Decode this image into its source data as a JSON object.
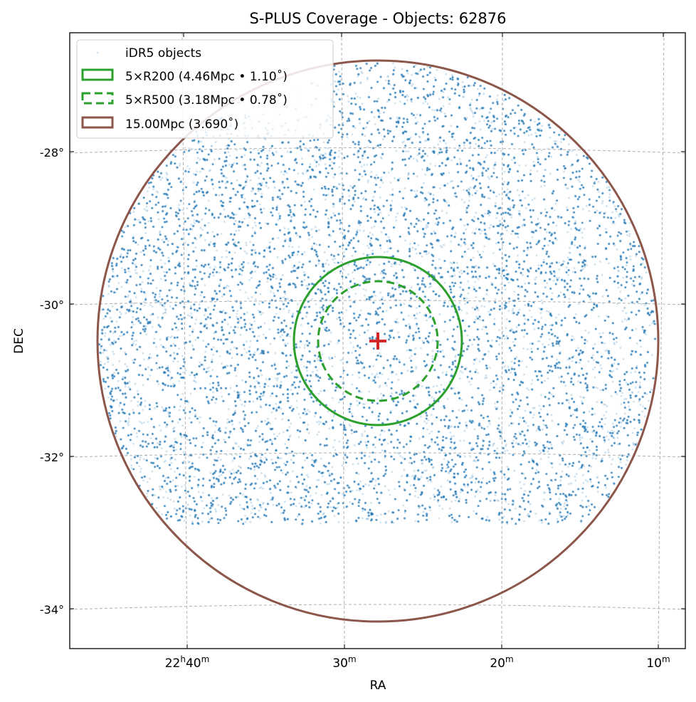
{
  "chart_data": {
    "type": "scatter",
    "title": "S-PLUS Coverage - Objects: 62876",
    "object_count": 62876,
    "xlabel": "RA",
    "ylabel": "DEC",
    "x_ticks": [
      {
        "main": "22",
        "sup1": "h",
        "main2": "40",
        "sup2": "m"
      },
      {
        "main": "",
        "sup1": "",
        "main2": "30",
        "sup2": "m"
      },
      {
        "main": "",
        "sup1": "",
        "main2": "20",
        "sup2": "m"
      },
      {
        "main": "",
        "sup1": "",
        "main2": "10",
        "sup2": "m"
      }
    ],
    "y_ticks": [
      "-28°",
      "-30°",
      "-32°",
      "-34°"
    ],
    "y_tick_values": [
      -28,
      -30,
      -32,
      -34
    ],
    "grid": true,
    "center": {
      "ra_deg": 336.95,
      "dec_deg": -30.49
    },
    "legend_placement": "top-left",
    "legend": [
      {
        "label": "iDR5 objects",
        "kind": "points",
        "color": "#1f77b4"
      },
      {
        "label": "5×R200 (4.46Mpc • 1.10˚)",
        "kind": "circle-solid",
        "color": "#2ca02c",
        "radius_deg": 1.1
      },
      {
        "label": "5×R500 (3.18Mpc • 0.78˚)",
        "kind": "circle-dashed",
        "color": "#2ca02c",
        "radius_deg": 0.78
      },
      {
        "label": "15.00Mpc (3.690˚)",
        "kind": "circle-solid",
        "color": "#8c564b",
        "radius_deg": 3.69
      }
    ],
    "center_marker": {
      "symbol": "+",
      "color": "#d62728"
    }
  }
}
